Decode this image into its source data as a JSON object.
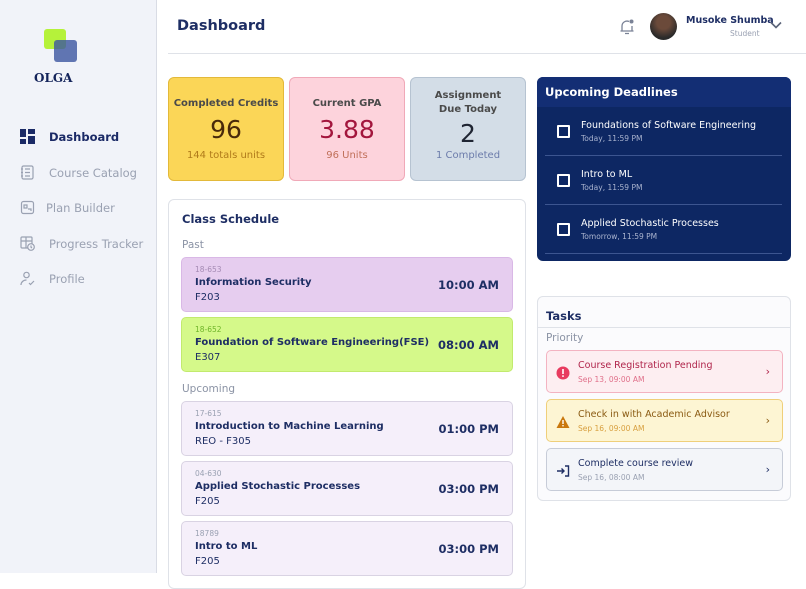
{
  "brand": {
    "name": "OLGA"
  },
  "sidebar": {
    "items": [
      {
        "label": "Dashboard",
        "icon": "dashboard-icon",
        "active": true
      },
      {
        "label": "Course Catalog",
        "icon": "catalog-icon"
      },
      {
        "label": "Plan Builder",
        "icon": "plan-icon"
      },
      {
        "label": "Progress Tracker",
        "icon": "progress-icon"
      },
      {
        "label": "Profile",
        "icon": "profile-icon"
      }
    ]
  },
  "header": {
    "title": "Dashboard",
    "user": {
      "name": "Musoke Shumba",
      "role": "Student"
    }
  },
  "stats": [
    {
      "label": "Completed Credits",
      "value": "96",
      "sub": "144 totals units",
      "bg": "#fbd657",
      "valueColor": "#4a2a0a",
      "subColor": "#b07a1a"
    },
    {
      "label": "Current GPA",
      "value": "3.88",
      "sub": "96 Units",
      "bg": "#fdd3dc",
      "valueColor": "#a3163d",
      "subColor": "#c0705a"
    },
    {
      "label": "Assignment Due Today",
      "value": "2",
      "sub": "1 Completed",
      "bg": "#d3dde7",
      "valueColor": "#1f2533",
      "subColor": "#6c7cab"
    }
  ],
  "schedule": {
    "title": "Class Schedule",
    "past_label": "Past",
    "upcoming_label": "Upcoming",
    "past": [
      {
        "code": "18-653",
        "name": "Information Security",
        "room": "F203",
        "time": "10:00 AM",
        "bg": "#e6cdef"
      },
      {
        "code": "18-652",
        "name": "Foundation of Software Engineering(FSE)",
        "room": "E307",
        "time": "08:00 AM",
        "bg": "#d5f98a"
      }
    ],
    "upcoming": [
      {
        "code": "17-615",
        "name": "Introduction to  Machine Learning",
        "room": "REO - F305",
        "time": "01:00 PM"
      },
      {
        "code": "04-630",
        "name": "Applied Stochastic Processes",
        "room": "F205",
        "time": "03:00 PM"
      },
      {
        "code": "18789",
        "name": "Intro to ML",
        "room": "F205",
        "time": "03:00 PM"
      }
    ]
  },
  "deadlines": {
    "title": "Upcoming Deadlines",
    "items": [
      {
        "title": "Foundations of Software Engineering",
        "due": "Today, 11:59 PM"
      },
      {
        "title": "Intro to ML",
        "due": "Today, 11:59 PM"
      },
      {
        "title": "Applied Stochastic Processes",
        "due": "Tomorrow, 11:59 PM"
      }
    ]
  },
  "tasks": {
    "title": "Tasks",
    "priority_label": "Priority",
    "items": [
      {
        "title": "Course Registration Pending",
        "date": "Sep 13, 09:00 AM",
        "icon": "alert-circle-icon",
        "bg": "#fdeef1",
        "border": "#f3b3c1",
        "titleColor": "#b0264c",
        "dateColor": "#e0708a"
      },
      {
        "title": "Check in with Academic Advisor",
        "date": "Sep 16, 09:00 AM",
        "icon": "warning-triangle-icon",
        "bg": "#fdf5d3",
        "border": "#efcf7a",
        "titleColor": "#8a5a12",
        "dateColor": "#d8a040"
      },
      {
        "title": "Complete course review",
        "date": "Sep 16, 08:00 AM",
        "icon": "sign-in-icon",
        "bg": "#f3f5f9",
        "border": "#c7ccd8",
        "titleColor": "#1e2e64",
        "dateColor": "#9aa1b2"
      }
    ]
  }
}
